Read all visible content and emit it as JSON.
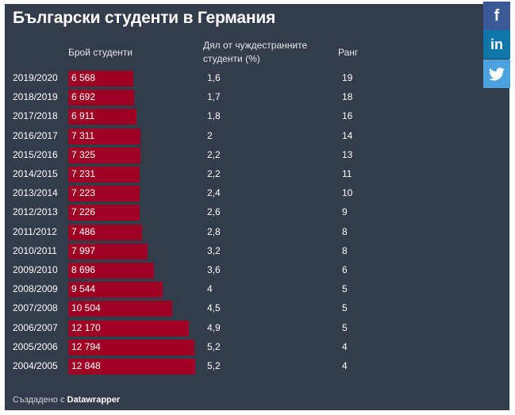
{
  "title": "Български студенти в Германия",
  "headers": {
    "count": "Брой студенти",
    "share": "Дял от чуждестранните студенти (%)",
    "rank": "Ранг"
  },
  "footer": {
    "prefix": "Създадено с",
    "brand": "Datawrapper"
  },
  "share_buttons": {
    "facebook": "f",
    "linkedin": "in"
  },
  "colors": {
    "background": "#323c4a",
    "bar": "#9e0024"
  },
  "chart_data": {
    "type": "bar",
    "title": "Български студенти в Германия",
    "categories": [
      "2019/2020",
      "2018/2019",
      "2017/2018",
      "2016/2017",
      "2015/2016",
      "2014/2015",
      "2013/2014",
      "2012/2013",
      "2011/2012",
      "2010/2011",
      "2009/2010",
      "2008/2009",
      "2007/2008",
      "2006/2007",
      "2005/2006",
      "2004/2005"
    ],
    "series": [
      {
        "name": "Брой студенти",
        "values": [
          6568,
          6692,
          6911,
          7311,
          7325,
          7231,
          7223,
          7226,
          7486,
          7997,
          8696,
          9544,
          10504,
          12170,
          12794,
          12848
        ],
        "labels": [
          "6 568",
          "6 692",
          "6 911",
          "7 311",
          "7 325",
          "7 231",
          "7 223",
          "7 226",
          "7 486",
          "7 997",
          "8 696",
          "9 544",
          "10 504",
          "12 170",
          "12 794",
          "12 848"
        ]
      }
    ],
    "share_percent": [
      "1,6",
      "1,7",
      "1,8",
      "2",
      "2,2",
      "2,2",
      "2,4",
      "2,6",
      "2,8",
      "3,2",
      "3,6",
      "4",
      "4,5",
      "4,9",
      "5,2",
      "5,2"
    ],
    "rank": [
      "19",
      "18",
      "16",
      "14",
      "13",
      "11",
      "10",
      "9",
      "8",
      "8",
      "6",
      "5",
      "5",
      "5",
      "4",
      "4"
    ],
    "xlim": [
      0,
      12848
    ]
  }
}
